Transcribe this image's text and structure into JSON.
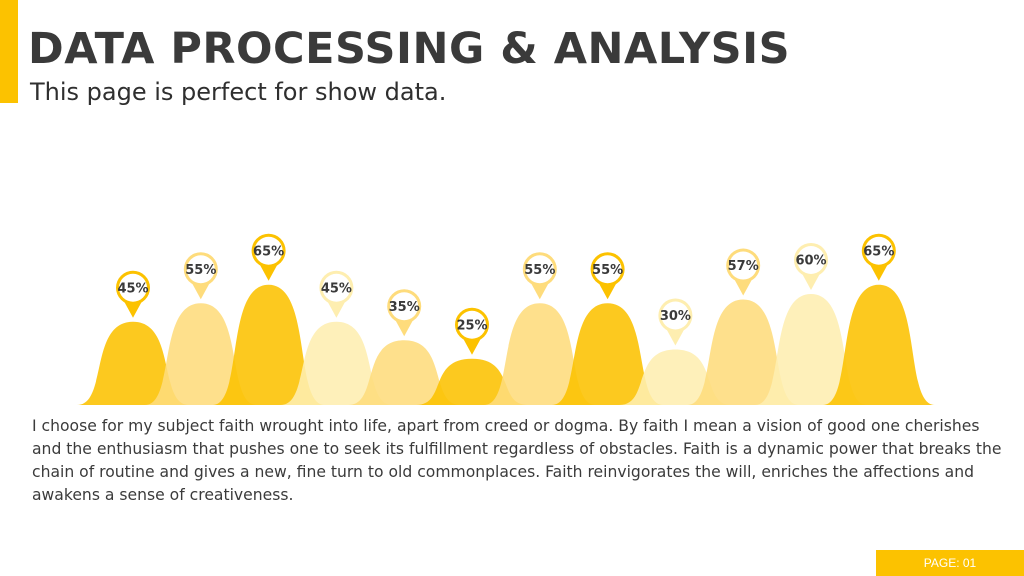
{
  "header": {
    "title": "DATA PROCESSING & ANALYSIS",
    "subtitle": "This page is perfect for show data."
  },
  "body": {
    "paragraph": "I choose for my subject faith wrought into life, apart from creed or dogma. By faith I mean a vision of good one cherishes and the enthusiasm that pushes one to seek its fulfillment regardless of obstacles. Faith is a dynamic power that breaks the chain of routine and gives a new, fine turn to old commonplaces. Faith reinvigorates the will, enriches the affections and awakens a sense of creativeness."
  },
  "footer": {
    "page_label": "PAGE: 01"
  },
  "colors": {
    "accent": "#fcc200",
    "shades": [
      "#fcc200",
      "#fedc7c",
      "#feeeb0"
    ]
  },
  "chart_data": {
    "type": "area",
    "title": "",
    "xlabel": "",
    "ylabel": "",
    "ylim": [
      0,
      100
    ],
    "grid": false,
    "values": [
      45,
      55,
      65,
      45,
      35,
      25,
      55,
      55,
      30,
      57,
      60,
      65
    ],
    "labels": [
      "45%",
      "55%",
      "65%",
      "45%",
      "35%",
      "25%",
      "55%",
      "55%",
      "30%",
      "57%",
      "60%",
      "65%"
    ],
    "shades": [
      0,
      1,
      0,
      2,
      1,
      0,
      1,
      0,
      2,
      1,
      2,
      0
    ]
  }
}
